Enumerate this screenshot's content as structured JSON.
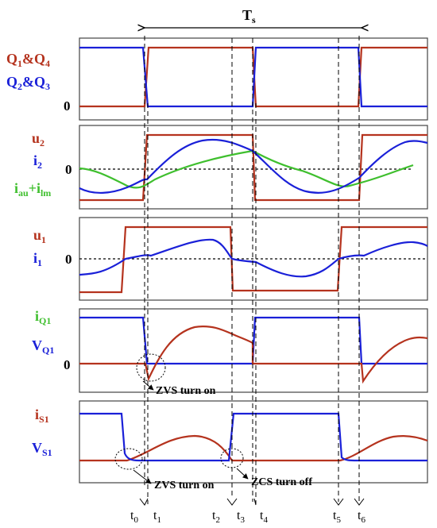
{
  "colors": {
    "red": "#b5331e",
    "blue": "#1a20d8",
    "green": "#3fbf2e",
    "black": "#000000"
  },
  "period_label": {
    "main": "T",
    "sub": "s"
  },
  "panels": {
    "p1": {
      "sig_a": {
        "main": "Q",
        "s1": "1",
        "mid": "&Q",
        "s2": "4"
      },
      "sig_b": {
        "main": "Q",
        "s1": "2",
        "mid": "&Q",
        "s2": "3"
      },
      "zero": "0"
    },
    "p2": {
      "sig_a": {
        "main": "u",
        "sub": "2"
      },
      "sig_b": {
        "main": "i",
        "sub": "2"
      },
      "sig_c": {
        "main": "i",
        "s1": "au",
        "mid": "+i",
        "s2": "lm"
      },
      "zero": "0"
    },
    "p3": {
      "sig_a": {
        "main": "u",
        "sub": "1"
      },
      "sig_b": {
        "main": "i",
        "sub": "1"
      },
      "zero": "0"
    },
    "p4": {
      "sig_a": {
        "main": "i",
        "sub": "Q1"
      },
      "sig_b": {
        "main": "V",
        "sub": "Q1"
      },
      "zero": "0",
      "note": "ZVS turn on"
    },
    "p5": {
      "sig_a": {
        "main": "i",
        "sub": "S1"
      },
      "sig_b": {
        "main": "V",
        "sub": "S1"
      },
      "note_zvs": "ZVS turn on",
      "note_zcs": "ZCS turn off"
    }
  },
  "time_marks": [
    {
      "main": "t",
      "sub": "0"
    },
    {
      "main": "t",
      "sub": "1"
    },
    {
      "main": "t",
      "sub": "2"
    },
    {
      "main": "t",
      "sub": "3"
    },
    {
      "main": "t",
      "sub": "4"
    },
    {
      "main": "t",
      "sub": "5"
    },
    {
      "main": "t",
      "sub": "6"
    }
  ]
}
